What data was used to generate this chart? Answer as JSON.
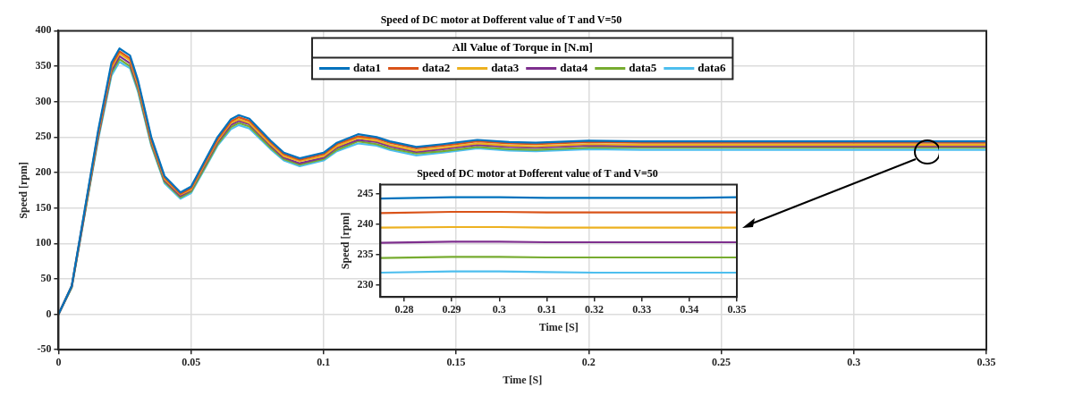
{
  "chart_data": [
    {
      "type": "line",
      "title": "Speed of DC motor at Dofferent value of T and V=50",
      "xlabel": "Time [S]",
      "ylabel": "Speed [rpm]",
      "legend_title": "All Value of Torque in [N.m]",
      "legend": "top",
      "grid": true,
      "marker": "none",
      "line_style": "solid",
      "x": [
        0,
        0.005,
        0.01,
        0.015,
        0.02,
        0.023,
        0.027,
        0.03,
        0.035,
        0.04,
        0.046,
        0.05,
        0.055,
        0.06,
        0.065,
        0.068,
        0.072,
        0.08,
        0.085,
        0.091,
        0.1,
        0.105,
        0.113,
        0.12,
        0.125,
        0.135,
        0.145,
        0.158,
        0.17,
        0.18,
        0.2,
        0.22,
        0.25,
        0.3,
        0.35
      ],
      "xlim": [
        0,
        0.35
      ],
      "xticks": [
        0,
        0.05,
        0.1,
        0.15,
        0.2,
        0.25,
        0.3,
        0.35
      ],
      "ylim": [
        -50,
        400
      ],
      "yticks": [
        -50,
        0,
        50,
        100,
        150,
        200,
        250,
        300,
        350,
        400
      ],
      "series": [
        {
          "name": "data1",
          "color": "#0072bd",
          "values": [
            0,
            40,
            150,
            260,
            355,
            375,
            365,
            330,
            250,
            195,
            172,
            180,
            215,
            250,
            275,
            281,
            276,
            245,
            228,
            220,
            228,
            242,
            254,
            250,
            244,
            236,
            240,
            246,
            243,
            242,
            245,
            244,
            244,
            244,
            244
          ]
        },
        {
          "name": "data2",
          "color": "#d95319",
          "values": [
            0,
            40,
            148,
            257,
            351,
            371,
            361,
            327,
            247,
            193,
            170,
            178,
            213,
            247,
            272,
            278,
            273,
            243,
            226,
            218,
            226,
            240,
            251,
            248,
            242,
            234,
            238,
            244,
            241,
            240,
            243,
            242,
            242,
            242,
            242
          ]
        },
        {
          "name": "data3",
          "color": "#edb120",
          "values": [
            null,
            null,
            147,
            255,
            348,
            368,
            358,
            323,
            245,
            191,
            169,
            176,
            211,
            245,
            270,
            275,
            270,
            240,
            223,
            216,
            223,
            237,
            249,
            245,
            239,
            231,
            235,
            241,
            238,
            237,
            240,
            239,
            239,
            239,
            239
          ]
        },
        {
          "name": "data4",
          "color": "#7e2f8e",
          "values": [
            0,
            39,
            146,
            252,
            344,
            364,
            354,
            320,
            243,
            189,
            167,
            175,
            209,
            243,
            267,
            273,
            268,
            238,
            221,
            213,
            221,
            235,
            246,
            243,
            237,
            229,
            233,
            239,
            236,
            235,
            238,
            237,
            237,
            237,
            237
          ]
        },
        {
          "name": "data5",
          "color": "#77ac30",
          "values": [
            0,
            38,
            144,
            250,
            341,
            360,
            350,
            317,
            240,
            187,
            165,
            173,
            206,
            240,
            264,
            270,
            265,
            235,
            219,
            211,
            219,
            232,
            244,
            240,
            234,
            227,
            230,
            236,
            233,
            232,
            235,
            235,
            235,
            235,
            235
          ]
        },
        {
          "name": "data6",
          "color": "#4dbeee",
          "values": [
            0,
            38,
            143,
            247,
            337,
            356,
            347,
            314,
            238,
            185,
            163,
            171,
            204,
            238,
            261,
            267,
            262,
            233,
            217,
            209,
            217,
            230,
            241,
            238,
            232,
            224,
            228,
            234,
            231,
            230,
            233,
            232,
            232,
            232,
            232
          ]
        }
      ]
    },
    {
      "type": "line",
      "title": "Speed of DC motor at Dofferent value of T and V=50",
      "xlabel": "Time [S]",
      "ylabel": "Speed [rpm]",
      "grid": false,
      "legend": false,
      "marker": "none",
      "line_style": "solid",
      "x": [
        0.275,
        0.29,
        0.3,
        0.31,
        0.32,
        0.33,
        0.34,
        0.35
      ],
      "xlim": [
        0.275,
        0.35
      ],
      "xticks": [
        0.28,
        0.29,
        0.3,
        0.31,
        0.32,
        0.33,
        0.34,
        0.35
      ],
      "ylim": [
        228,
        246.5
      ],
      "yticks": [
        230,
        235,
        240,
        245
      ],
      "series": [
        {
          "color": "#0072bd",
          "values": [
            244.2,
            244.4,
            244.4,
            244.3,
            244.3,
            244.3,
            244.3,
            244.4
          ]
        },
        {
          "color": "#d95319",
          "values": [
            241.8,
            242,
            242,
            241.9,
            241.9,
            241.9,
            241.9,
            241.9
          ]
        },
        {
          "color": "#edb120",
          "values": [
            239.4,
            239.5,
            239.5,
            239.4,
            239.4,
            239.4,
            239.4,
            239.4
          ]
        },
        {
          "color": "#7e2f8e",
          "values": [
            236.9,
            237.1,
            237.1,
            237,
            237,
            237,
            237,
            237
          ]
        },
        {
          "color": "#77ac30",
          "values": [
            234.4,
            234.6,
            234.6,
            234.5,
            234.5,
            234.5,
            234.5,
            234.5
          ]
        },
        {
          "color": "#4dbeee",
          "values": [
            232,
            232.2,
            232.2,
            232.1,
            232,
            232,
            232,
            232
          ]
        }
      ]
    }
  ]
}
